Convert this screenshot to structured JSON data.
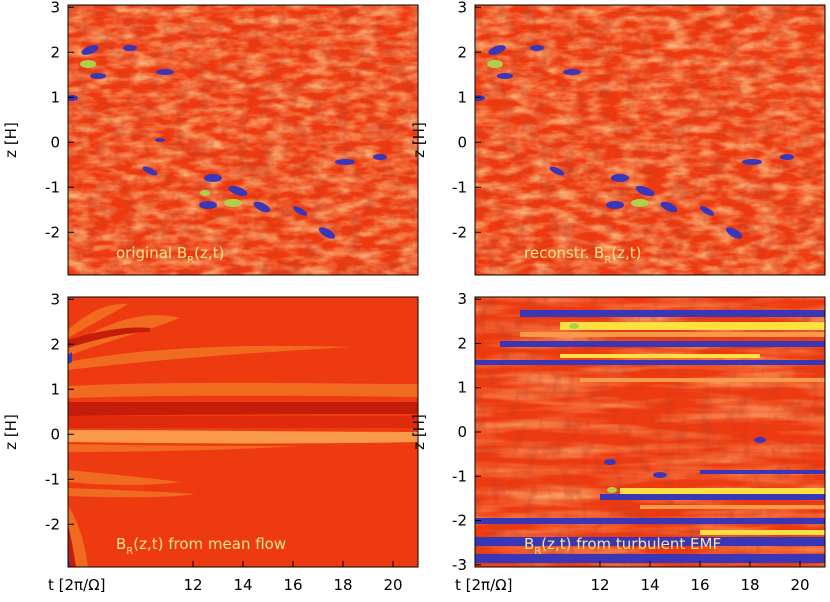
{
  "colors": {
    "background_red": "#ee3a10",
    "dark_red": "#c41e0a",
    "orange": "#f06a20",
    "light_orange": "#f89a4a",
    "yellow": "#ffe040",
    "green": "#b0d04a",
    "blue": "#3a36b8",
    "annotation_text": "#ffe38a"
  },
  "chart_data": [
    {
      "id": "top-left",
      "type": "heatmap",
      "annotation": {
        "main": "original B",
        "sub": "R",
        "rest": "(z,t)"
      },
      "ylabel": "z [H]",
      "xlabel": "",
      "xlim": [
        7,
        21
      ],
      "ylim": [
        -2.95,
        3.05
      ],
      "xticks": [],
      "yticks": [
        "-2",
        "-1",
        "0",
        "1",
        "2",
        "3"
      ]
    },
    {
      "id": "top-right",
      "type": "heatmap",
      "annotation": {
        "main": "reconstr. B",
        "sub": "R",
        "rest": "(z,t)"
      },
      "ylabel": "z [H]",
      "xlabel": "",
      "xlim": [
        7,
        21
      ],
      "ylim": [
        -2.95,
        3.05
      ],
      "xticks": [],
      "yticks": [
        "-2",
        "-1",
        "0",
        "1",
        "2",
        "3"
      ]
    },
    {
      "id": "bottom-left",
      "type": "heatmap",
      "annotation": {
        "main": "B",
        "sub": "R",
        "rest": "(z,t) from mean flow"
      },
      "ylabel": "z [H]",
      "xlabel": "t [2π/Ω]",
      "xlim": [
        7,
        21
      ],
      "ylim": [
        -2.95,
        3.05
      ],
      "xticks": [
        "12",
        "14",
        "16",
        "18",
        "20"
      ],
      "yticks": [
        "-2",
        "-1",
        "0",
        "1",
        "2",
        "3"
      ]
    },
    {
      "id": "bottom-right",
      "type": "heatmap",
      "annotation": {
        "main": "B",
        "sub": "R",
        "rest": "(z,t) from turbulent EMF"
      },
      "ylabel": "z [H]",
      "xlabel": "t [2π/Ω]",
      "xlim": [
        7,
        21
      ],
      "ylim": [
        -3.05,
        3.05
      ],
      "xticks": [
        "12",
        "14",
        "16",
        "18",
        "20"
      ],
      "yticks": [
        "-3",
        "-2",
        "-1",
        "0",
        "1",
        "2",
        "3"
      ]
    }
  ]
}
